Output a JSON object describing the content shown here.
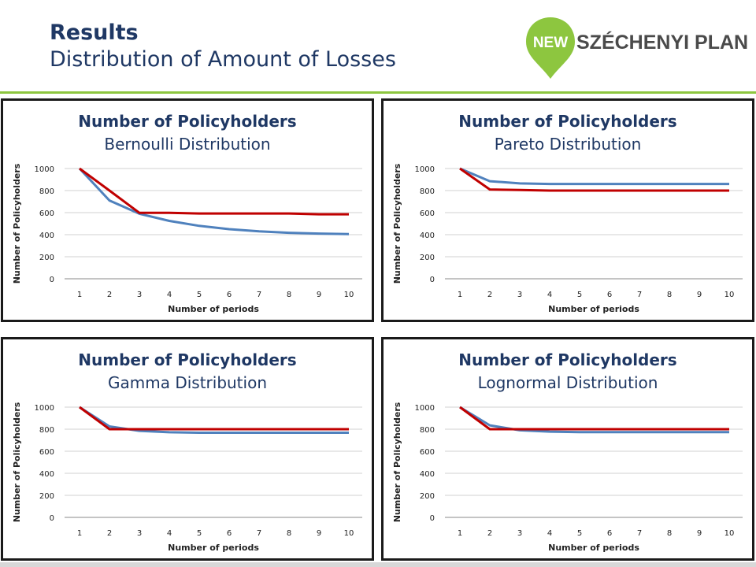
{
  "header": {
    "title": "Results",
    "subtitle": "Distribution of Amount of Losses",
    "logo_badge": "NEW",
    "logo_text": "SZÉCHENYI PLAN"
  },
  "colors": {
    "title": "#1f3864",
    "series_blue": "#4f81bd",
    "series_red": "#c00000",
    "logo_green": "#8dc63f",
    "panel_border": "#1a1a1a"
  },
  "chart_data": [
    {
      "type": "line",
      "title": "Number of Policyholders",
      "subtitle": "Bernoulli Distribution",
      "xlabel": "Number of periods",
      "ylabel": "Number of Policyholders",
      "categories": [
        "1",
        "2",
        "3",
        "4",
        "5",
        "6",
        "7",
        "8",
        "9",
        "10"
      ],
      "ylim": [
        0,
        1000
      ],
      "yticks": [
        0,
        200,
        400,
        600,
        800,
        1000
      ],
      "grid": true,
      "series": [
        {
          "color": "#4f81bd",
          "values": [
            1000,
            710,
            590,
            525,
            480,
            450,
            430,
            417,
            410,
            405
          ]
        },
        {
          "color": "#c00000",
          "values": [
            1000,
            800,
            598,
            598,
            592,
            592,
            592,
            592,
            585,
            585
          ]
        }
      ]
    },
    {
      "type": "line",
      "title": "Number of Policyholders",
      "subtitle": "Pareto Distribution",
      "xlabel": "Number of periods",
      "ylabel": "Number of Policyholders",
      "categories": [
        "1",
        "2",
        "3",
        "4",
        "5",
        "6",
        "7",
        "8",
        "9",
        "10"
      ],
      "ylim": [
        0,
        1000
      ],
      "yticks": [
        0,
        200,
        400,
        600,
        800,
        1000
      ],
      "grid": true,
      "series": [
        {
          "color": "#4f81bd",
          "values": [
            1000,
            885,
            865,
            860,
            860,
            860,
            860,
            860,
            860,
            860
          ]
        },
        {
          "color": "#c00000",
          "values": [
            1000,
            810,
            805,
            800,
            800,
            800,
            800,
            800,
            800,
            800
          ]
        }
      ]
    },
    {
      "type": "line",
      "title": "Number of Policyholders",
      "subtitle": "Gamma Distribution",
      "xlabel": "Number of periods",
      "ylabel": "Number of Policyholders",
      "categories": [
        "1",
        "2",
        "3",
        "4",
        "5",
        "6",
        "7",
        "8",
        "9",
        "10"
      ],
      "ylim": [
        0,
        1000
      ],
      "yticks": [
        0,
        200,
        400,
        600,
        800,
        1000
      ],
      "grid": true,
      "series": [
        {
          "color": "#4f81bd",
          "values": [
            1000,
            825,
            785,
            772,
            768,
            768,
            768,
            768,
            768,
            768
          ]
        },
        {
          "color": "#c00000",
          "values": [
            1000,
            800,
            800,
            800,
            800,
            800,
            800,
            800,
            800,
            800
          ]
        }
      ]
    },
    {
      "type": "line",
      "title": "Number of Policyholders",
      "subtitle": "Lognormal Distribution",
      "xlabel": "Number of periods",
      "ylabel": "Number of Policyholders",
      "categories": [
        "1",
        "2",
        "3",
        "4",
        "5",
        "6",
        "7",
        "8",
        "9",
        "10"
      ],
      "ylim": [
        0,
        1000
      ],
      "yticks": [
        0,
        200,
        400,
        600,
        800,
        1000
      ],
      "grid": true,
      "series": [
        {
          "color": "#4f81bd",
          "values": [
            1000,
            835,
            790,
            778,
            773,
            773,
            773,
            773,
            773,
            773
          ]
        },
        {
          "color": "#c00000",
          "values": [
            1000,
            800,
            800,
            800,
            800,
            800,
            800,
            800,
            800,
            800
          ]
        }
      ]
    }
  ]
}
